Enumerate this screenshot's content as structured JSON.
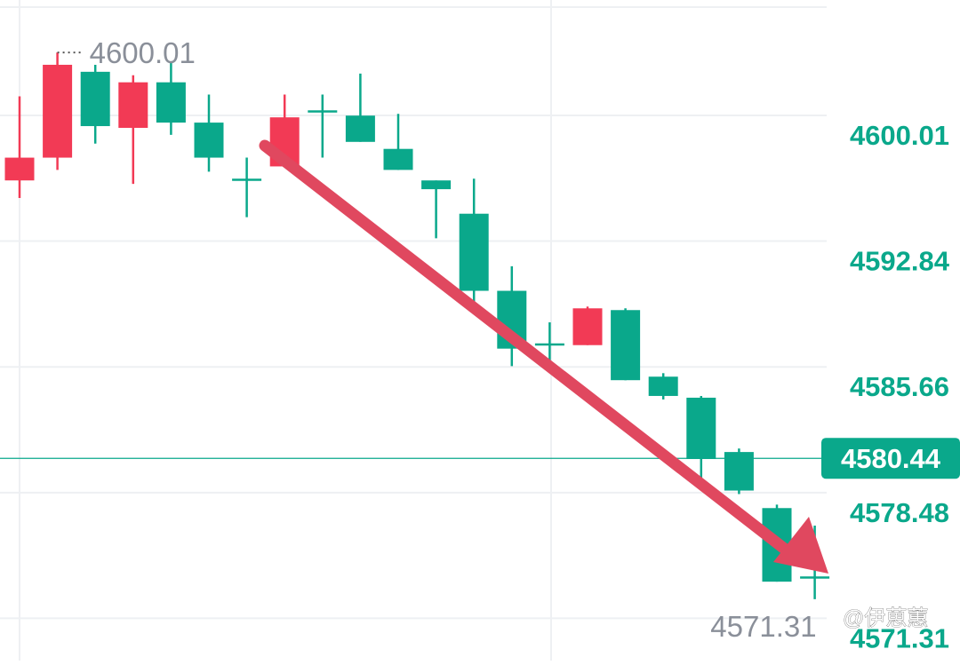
{
  "chart_data": {
    "type": "candlestick",
    "y_axis": {
      "ticks": [
        "4600.01",
        "4592.84",
        "4585.66",
        "4578.48",
        "4571.31"
      ],
      "range": [
        4569.5,
        4607.8
      ]
    },
    "last_price": "4580.44",
    "high_marker": "4600.01",
    "low_marker": "4571.31",
    "up_color": "#0aa88b",
    "down_color": "#f23a55",
    "candles": [
      {
        "o": 4596.3,
        "c": 4597.6,
        "h": 4601.1,
        "l": 4595.3,
        "dir": "down"
      },
      {
        "o": 4597.6,
        "c": 4602.9,
        "h": 4603.6,
        "l": 4596.9,
        "dir": "down"
      },
      {
        "o": 4602.5,
        "c": 4599.4,
        "h": 4602.9,
        "l": 4598.4,
        "dir": "up"
      },
      {
        "o": 4599.3,
        "c": 4601.9,
        "h": 4602.3,
        "l": 4596.1,
        "dir": "down"
      },
      {
        "o": 4601.9,
        "c": 4599.6,
        "h": 4603.1,
        "l": 4598.9,
        "dir": "up"
      },
      {
        "o": 4599.6,
        "c": 4597.6,
        "h": 4601.2,
        "l": 4596.8,
        "dir": "up"
      },
      {
        "o": 4596.4,
        "c": 4596.4,
        "h": 4597.6,
        "l": 4594.2,
        "dir": "up"
      },
      {
        "o": 4597.1,
        "c": 4599.9,
        "h": 4601.2,
        "l": 4597.1,
        "dir": "down"
      },
      {
        "o": 4600.3,
        "c": 4600.3,
        "h": 4601.2,
        "l": 4597.6,
        "dir": "up"
      },
      {
        "o": 4600.0,
        "c": 4598.5,
        "h": 4602.4,
        "l": 4598.5,
        "dir": "up"
      },
      {
        "o": 4598.1,
        "c": 4596.9,
        "h": 4600.1,
        "l": 4596.9,
        "dir": "up"
      },
      {
        "o": 4596.3,
        "c": 4595.8,
        "h": 4596.3,
        "l": 4593.0,
        "dir": "up"
      },
      {
        "o": 4594.4,
        "c": 4590.0,
        "h": 4596.4,
        "l": 4589.2,
        "dir": "up"
      },
      {
        "o": 4590.0,
        "c": 4586.7,
        "h": 4591.4,
        "l": 4585.7,
        "dir": "up"
      },
      {
        "o": 4587.0,
        "c": 4587.0,
        "h": 4588.2,
        "l": 4585.9,
        "dir": "up"
      },
      {
        "o": 4586.9,
        "c": 4589.0,
        "h": 4589.1,
        "l": 4586.9,
        "dir": "down"
      },
      {
        "o": 4588.9,
        "c": 4584.9,
        "h": 4589.0,
        "l": 4584.9,
        "dir": "up"
      },
      {
        "o": 4585.1,
        "c": 4584.0,
        "h": 4585.3,
        "l": 4583.8,
        "dir": "up"
      },
      {
        "o": 4583.9,
        "c": 4580.4,
        "h": 4584.0,
        "l": 4579.3,
        "dir": "up"
      },
      {
        "o": 4580.8,
        "c": 4578.6,
        "h": 4581.0,
        "l": 4578.4,
        "dir": "up"
      },
      {
        "o": 4577.6,
        "c": 4573.4,
        "h": 4577.8,
        "l": 4573.4,
        "dir": "up"
      },
      {
        "o": 4573.7,
        "c": 4573.7,
        "h": 4576.6,
        "l": 4572.4,
        "dir": "up"
      }
    ],
    "annotation_arrow": {
      "color": "#e0485f"
    },
    "grid": true
  },
  "watermark": "@伊葸蕙"
}
